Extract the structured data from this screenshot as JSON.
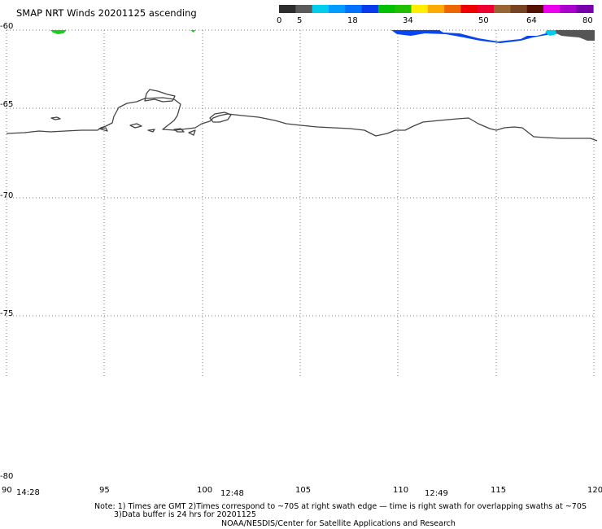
{
  "title": "SMAP NRT Winds 20201125 ascending",
  "colorbar": {
    "labels": [
      "0",
      "5",
      "18",
      "34",
      "50",
      "64",
      "80"
    ],
    "segments": [
      "#2d2d2d",
      "#5a5a5a",
      "#00ccee",
      "#009cff",
      "#0070ff",
      "#0a3aee",
      "#00c000",
      "#20c000",
      "#ffee00",
      "#ffaa00",
      "#ee6600",
      "#ee0000",
      "#ee0030",
      "#996633",
      "#774422",
      "#551100",
      "#ee00ee",
      "#aa00cc",
      "#7700aa"
    ]
  },
  "map": {
    "lat_labels": [
      "-60",
      "-65",
      "-70",
      "-75",
      "-80"
    ],
    "lon_labels": [
      "90",
      "95",
      "100",
      "105",
      "110",
      "115",
      "120"
    ],
    "time_labels": [
      "14:28",
      "12:48",
      "12:49"
    ]
  },
  "footer": {
    "note_line1": "Note: 1) Times are GMT 2)Times correspond to ~70S at right swath edge — time is right swath for overlapping swaths at ~70S",
    "note_line2": "3)Data buffer is 24 hrs for 20201125",
    "credit": "NOAA/NESDIS/Center for Satellite Applications and Research"
  }
}
